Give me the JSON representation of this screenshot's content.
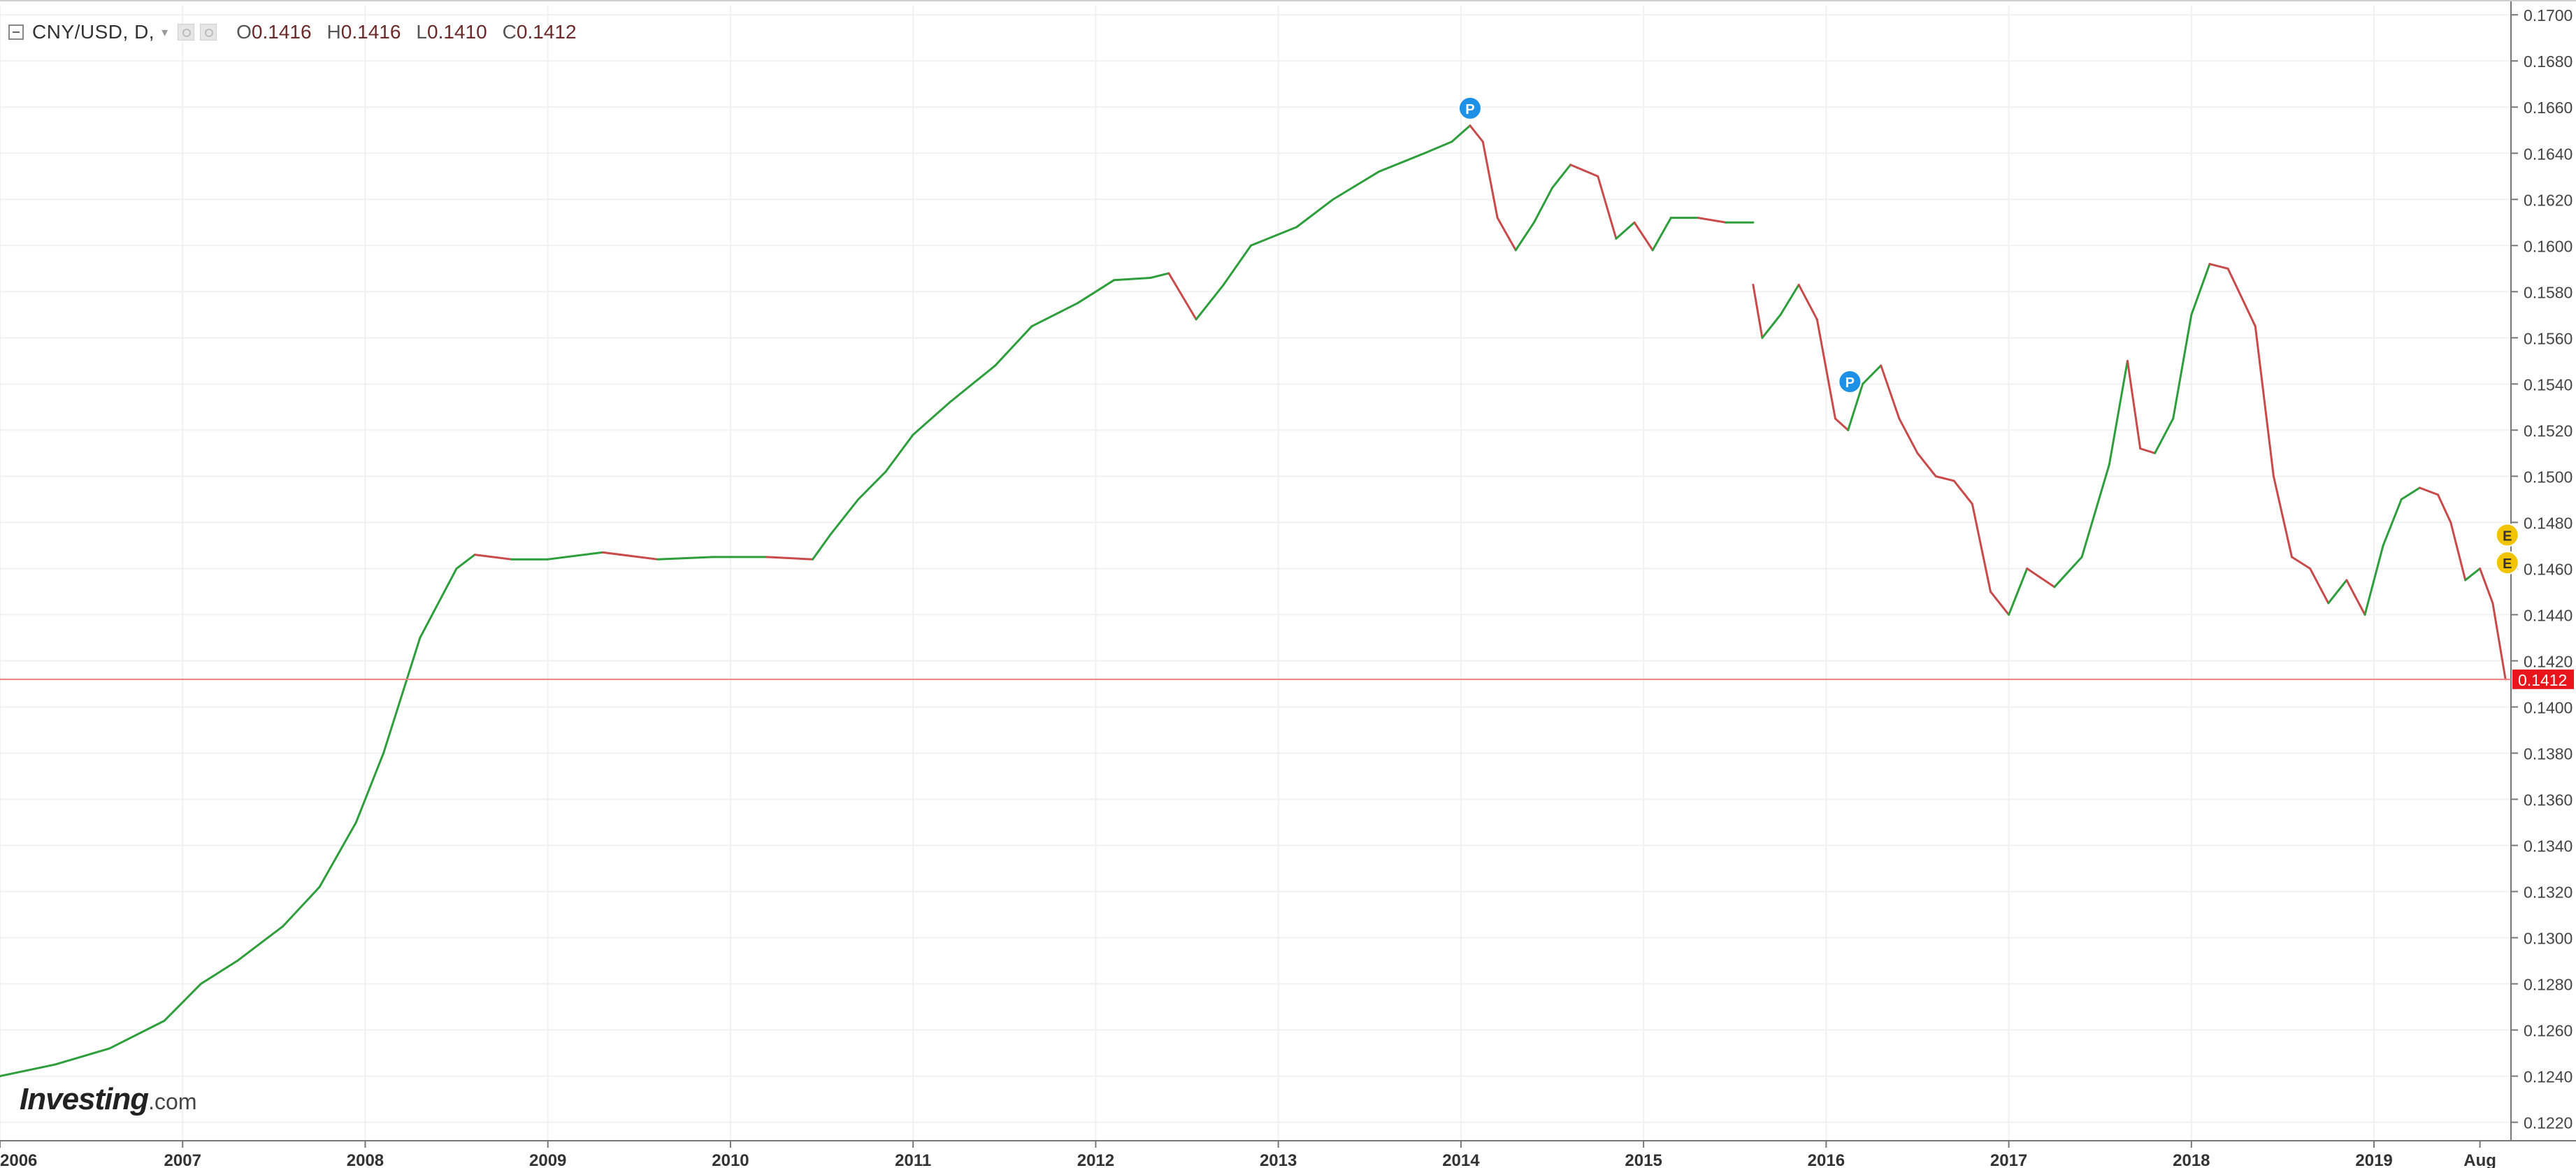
{
  "legend": {
    "symbol": "CNY/USD, D,",
    "open_key": "O",
    "open": "0.1416",
    "high_key": "H",
    "high": "0.1416",
    "low_key": "L",
    "low": "0.1410",
    "close_key": "C",
    "close": "0.1412",
    "icons": [
      "collapse-icon",
      "chevron-down-icon",
      "settings-icon",
      "settings-icon"
    ]
  },
  "logo": {
    "brand": "Investing",
    "suffix": ".com"
  },
  "price_label": "0.1412",
  "markers": [
    {
      "label": "P",
      "date": 2014.05,
      "price": 0.16595,
      "color": "#1e90e6"
    },
    {
      "label": "P",
      "date": 2016.13,
      "price": 0.1541,
      "color": "#1e90e6"
    },
    {
      "label": "E",
      "date": 2019.73,
      "price": 0.14745,
      "color": "#f2c400"
    },
    {
      "label": "E",
      "date": 2019.73,
      "price": 0.14625,
      "color": "#f2c400"
    }
  ],
  "colors": {
    "up": "#2e9e3c",
    "down": "#c94a4a",
    "price_line": "#f08080",
    "price_badge": "#e8161c",
    "grid": "#f1f1f1",
    "axis": "#777777"
  },
  "chart_data": {
    "type": "line",
    "title": "",
    "xlabel": "",
    "ylabel": "",
    "xlim": [
      2006.0,
      2019.75
    ],
    "ylim": [
      0.1212,
      0.1704
    ],
    "grid": true,
    "x_ticks": [
      "2006",
      "2007",
      "2008",
      "2009",
      "2010",
      "2011",
      "2012",
      "2013",
      "2014",
      "2015",
      "2016",
      "2017",
      "2018",
      "2019",
      "Aug"
    ],
    "x_tick_positions": [
      2006.0,
      2007.0,
      2008.0,
      2009.0,
      2010.0,
      2011.0,
      2012.0,
      2013.0,
      2014.0,
      2015.0,
      2016.0,
      2017.0,
      2018.0,
      2019.0,
      2019.58
    ],
    "y_ticks": [
      "0.1220",
      "0.1240",
      "0.1260",
      "0.1280",
      "0.1300",
      "0.1320",
      "0.1340",
      "0.1360",
      "0.1380",
      "0.1400",
      "0.1420",
      "0.1440",
      "0.1460",
      "0.1480",
      "0.1500",
      "0.1520",
      "0.1540",
      "0.1560",
      "0.1580",
      "0.1600",
      "0.1620",
      "0.1640",
      "0.1660",
      "0.1680",
      "0.1700"
    ],
    "last_price": 0.1412,
    "series": [
      {
        "x": [
          2006.0,
          2006.3,
          2006.6,
          2006.9,
          2007.1,
          2007.3,
          2007.55,
          2007.75,
          2007.95,
          2008.1,
          2008.3,
          2008.5,
          2008.6,
          2008.8,
          2009.0,
          2009.3,
          2009.6,
          2009.9,
          2010.2,
          2010.45,
          2010.55,
          2010.7,
          2010.85,
          2011.0,
          2011.2,
          2011.45,
          2011.65,
          2011.9,
          2012.1,
          2012.3,
          2012.4,
          2012.55,
          2012.7,
          2012.85,
          2013.1,
          2013.3,
          2013.55,
          2013.8,
          2013.95,
          2014.05,
          2014.12,
          2014.2,
          2014.3,
          2014.4,
          2014.5,
          2014.6,
          2014.75,
          2014.85,
          2014.95,
          2015.05,
          2015.15,
          2015.3,
          2015.45,
          2015.6
        ],
        "values": [
          0.124,
          0.1245,
          0.1252,
          0.1264,
          0.128,
          0.129,
          0.1305,
          0.1322,
          0.135,
          0.138,
          0.143,
          0.146,
          0.1466,
          0.1464,
          0.1464,
          0.1467,
          0.1464,
          0.1465,
          0.1465,
          0.1464,
          0.1475,
          0.149,
          0.1502,
          0.1518,
          0.1532,
          0.1548,
          0.1565,
          0.1575,
          0.1585,
          0.1586,
          0.1588,
          0.1568,
          0.1583,
          0.16,
          0.1608,
          0.162,
          0.1632,
          0.164,
          0.1645,
          0.1652,
          0.1645,
          0.1612,
          0.1598,
          0.161,
          0.1625,
          0.1635,
          0.163,
          0.1603,
          0.161,
          0.1598,
          0.1612,
          0.1612,
          0.161,
          0.161
        ]
      },
      {
        "x": [
          2015.6,
          2015.65,
          2015.75,
          2015.85,
          2015.95,
          2016.05,
          2016.12,
          2016.2,
          2016.3,
          2016.4,
          2016.5,
          2016.6,
          2016.7,
          2016.8,
          2016.9,
          2017.0,
          2017.1,
          2017.25,
          2017.4,
          2017.55,
          2017.65,
          2017.72,
          2017.8,
          2017.9,
          2018.0,
          2018.1,
          2018.2,
          2018.35,
          2018.45,
          2018.55,
          2018.65,
          2018.75,
          2018.85,
          2018.95,
          2019.05,
          2019.15,
          2019.25,
          2019.35,
          2019.42,
          2019.5,
          2019.58,
          2019.65,
          2019.72
        ],
        "values": [
          0.1583,
          0.156,
          0.157,
          0.1583,
          0.1568,
          0.1525,
          0.152,
          0.154,
          0.1548,
          0.1525,
          0.151,
          0.15,
          0.1498,
          0.1488,
          0.145,
          0.144,
          0.146,
          0.1452,
          0.1465,
          0.1505,
          0.155,
          0.1512,
          0.151,
          0.1525,
          0.157,
          0.1592,
          0.159,
          0.1565,
          0.15,
          0.1465,
          0.146,
          0.1445,
          0.1455,
          0.144,
          0.147,
          0.149,
          0.1495,
          0.1492,
          0.148,
          0.1455,
          0.146,
          0.1445,
          0.1412
        ]
      }
    ]
  }
}
